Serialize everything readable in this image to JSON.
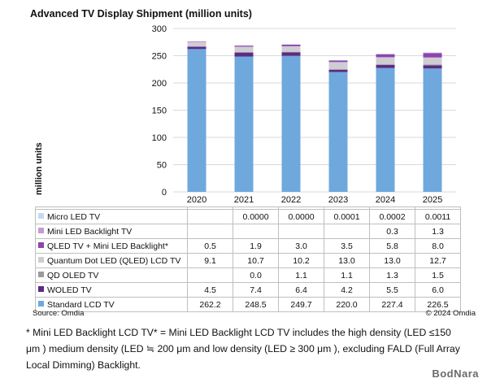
{
  "chart_data": {
    "type": "bar",
    "stacked": true,
    "title": "Advanced TV Display Shipment (million units)",
    "ylabel": "million  units",
    "ylim": [
      0,
      300
    ],
    "yticks": [
      0,
      50,
      100,
      150,
      200,
      250,
      300
    ],
    "grid": true,
    "categories": [
      "2020",
      "2021",
      "2022",
      "2023",
      "2024",
      "2025"
    ],
    "series": [
      {
        "name": "Standard LCD TV",
        "color": "#6FA8DC",
        "values": [
          262.2,
          248.5,
          249.7,
          220.0,
          227.4,
          226.5
        ]
      },
      {
        "name": "WOLED TV",
        "color": "#5B2C83",
        "values": [
          4.5,
          7.4,
          6.4,
          4.2,
          5.5,
          6.0
        ]
      },
      {
        "name": "QD OLED TV",
        "color": "#9B9B9B",
        "values": [
          null,
          0.0,
          1.1,
          1.1,
          1.3,
          1.5
        ]
      },
      {
        "name": "Quantum Dot LED (QLED) LCD TV",
        "color": "#D0CCD4",
        "values": [
          9.1,
          10.7,
          10.2,
          13.0,
          13.0,
          12.7
        ]
      },
      {
        "name": "QLED TV + Mini LED Backlight*",
        "color": "#8E44AD",
        "values": [
          0.5,
          1.9,
          3.0,
          3.5,
          5.8,
          8.0
        ]
      },
      {
        "name": "Mini LED Backlight TV",
        "color": "#C39BD3",
        "values": [
          null,
          null,
          null,
          null,
          0.3,
          1.3
        ]
      },
      {
        "name": "Micro LED TV",
        "color": "#C6D9F1",
        "values": [
          null,
          0.0,
          0.0,
          0.0001,
          0.0002,
          0.0011
        ]
      }
    ],
    "table_text": {
      "Micro LED TV": [
        "",
        "0.0000",
        "0.0000",
        "0.0001",
        "0.0002",
        "0.0011"
      ],
      "Mini LED Backlight TV": [
        "",
        "",
        "",
        "",
        "0.3",
        "1.3"
      ],
      "QLED TV + Mini LED Backlight*": [
        "0.5",
        "1.9",
        "3.0",
        "3.5",
        "5.8",
        "8.0"
      ],
      "Quantum Dot LED (QLED) LCD TV": [
        "9.1",
        "10.7",
        "10.2",
        "13.0",
        "13.0",
        "12.7"
      ],
      "QD OLED TV": [
        "",
        "0.0",
        "1.1",
        "1.1",
        "1.3",
        "1.5"
      ],
      "WOLED TV": [
        "4.5",
        "7.4",
        "6.4",
        "4.2",
        "5.5",
        "6.0"
      ],
      "Standard LCD TV": [
        "262.2",
        "248.5",
        "249.7",
        "220.0",
        "227.4",
        "226.5"
      ]
    },
    "table_row_order": [
      "Micro LED TV",
      "Mini LED Backlight TV",
      "QLED TV + Mini LED Backlight*",
      "Quantum Dot LED (QLED) LCD TV",
      "QD OLED TV",
      "WOLED TV",
      "Standard LCD TV"
    ]
  },
  "source": "Source: Omdia",
  "copyright": "© 2024 Omdia",
  "footnote": "* Mini LED Backlight LCD TV* = Mini LED Backlight LCD TV includes the high density (LED ≤150 μm ) medium density (LED ≒ 200 μm and low density (LED ≥ 300 μm ), excluding FALD (Full Array Local Dimming) Backlight.",
  "watermark": "BodNara"
}
